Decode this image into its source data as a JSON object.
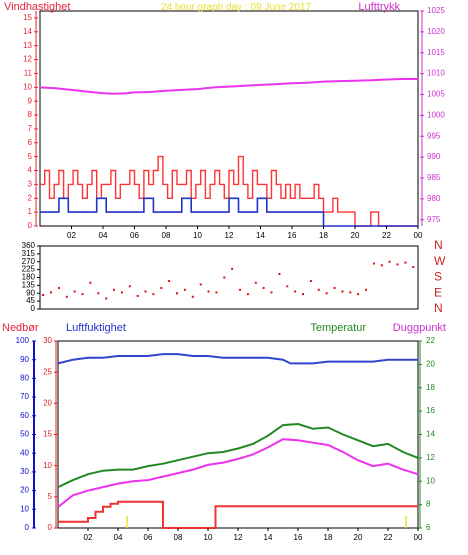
{
  "header": {
    "title": "24 hour graph day : 09 June 2017",
    "left_label": "Vindhastighet",
    "right_label": "Lufttrykk"
  },
  "colors": {
    "frame": "#000000",
    "left_axis": "#e8243a",
    "right_axis": "#cc33cc",
    "title": "#e8e030",
    "wind": "#ff3333",
    "gust_base": "#2233cc",
    "pressure": "#ee33ee",
    "direction": "#dd1111",
    "rain": "#1111cc",
    "humidity": "#3344cc",
    "temperature": "#228822",
    "dewpoint": "#ee33ee",
    "rain_line": "#ee3333",
    "rain_mark": "#e8e030",
    "hum_axis": "#dd2222"
  },
  "chart_data": [
    {
      "type": "line",
      "title": "24 hour graph day : 09 June 2017",
      "xlabel": "",
      "ylabel": "Vindhastighet",
      "x_ticks": [
        "02",
        "04",
        "06",
        "08",
        "10",
        "12",
        "14",
        "16",
        "18",
        "20",
        "22",
        "00"
      ],
      "left_ticks": [
        "0",
        "1",
        "2",
        "3",
        "4",
        "5",
        "6",
        "7",
        "8",
        "9",
        "10",
        "11",
        "12",
        "13",
        "14",
        "15"
      ],
      "right_ticks": [
        "975",
        "980",
        "985",
        "990",
        "995",
        "1000",
        "1005",
        "1010",
        "1015",
        "1020",
        "1025"
      ],
      "ylim": [
        0,
        15.5
      ],
      "y2lim": [
        973.5,
        1025
      ],
      "series": [
        {
          "name": "Lufttrykk",
          "axis": "right",
          "x": [
            0,
            1,
            2,
            3,
            4,
            4.7,
            5.5,
            6,
            7,
            8,
            9,
            10,
            11,
            12,
            13,
            14,
            15,
            16,
            17,
            18,
            19,
            20,
            21,
            22,
            23,
            24
          ],
          "values": [
            1006.7,
            1006.5,
            1006.1,
            1005.7,
            1005.3,
            1005.2,
            1005.3,
            1005.5,
            1005.6,
            1005.9,
            1006.1,
            1006.3,
            1006.7,
            1006.9,
            1007.1,
            1007.3,
            1007.5,
            1007.7,
            1007.8,
            1008.1,
            1008.2,
            1008.3,
            1008.4,
            1008.6,
            1008.7,
            1008.7
          ]
        },
        {
          "name": "",
          "axis": "left",
          "x": [
            0,
            0.3,
            0.6,
            0.9,
            1.2,
            1.5,
            1.8,
            2.1,
            2.4,
            2.7,
            3.0,
            3.3,
            3.6,
            3.9,
            4.2,
            4.5,
            4.8,
            5.1,
            5.4,
            5.7,
            6.0,
            6.3,
            6.6,
            6.9,
            7.2,
            7.5,
            7.8,
            8.1,
            8.4,
            8.7,
            9.0,
            9.3,
            9.6,
            9.9,
            10.2,
            10.5,
            10.8,
            11.1,
            11.4,
            11.7,
            12.0,
            12.3,
            12.6,
            12.9,
            13.2,
            13.5,
            13.8,
            14.1,
            14.4,
            14.7,
            15.0,
            15.3,
            15.6,
            15.9,
            16.2,
            16.5,
            16.8,
            17.1,
            17.4,
            17.7,
            18.0,
            18.3,
            18.6,
            18.9,
            19.2,
            19.5,
            20,
            20.5,
            21,
            21.5,
            22,
            22.5,
            23,
            24
          ],
          "values": [
            3,
            4,
            2,
            3,
            4,
            2,
            3,
            4,
            3,
            2,
            3,
            4,
            2,
            3,
            3,
            4,
            2,
            3,
            3,
            4,
            3,
            2,
            4,
            3,
            4,
            5,
            3,
            2,
            4,
            3,
            3,
            4,
            2,
            3,
            4,
            2,
            3,
            4,
            3,
            2,
            4,
            3,
            5,
            3,
            2,
            4,
            3,
            3,
            2,
            4,
            3,
            2,
            3,
            2,
            3,
            2,
            2,
            2,
            3,
            2,
            1,
            1,
            2,
            1,
            1,
            1,
            0,
            0,
            1,
            0,
            0,
            0,
            0,
            0
          ]
        },
        {
          "name": "",
          "axis": "left",
          "x": [
            0,
            0.6,
            1.2,
            1.8,
            2.4,
            3.0,
            3.6,
            4.2,
            4.8,
            5.4,
            6.0,
            6.6,
            7.2,
            7.8,
            8.4,
            9.0,
            9.6,
            10.2,
            10.8,
            11.4,
            12.0,
            12.6,
            13.2,
            13.8,
            14.4,
            15.0,
            15.6,
            16.2,
            16.8,
            17.4,
            18.0,
            18.6,
            19.2,
            20,
            21,
            22,
            23,
            24
          ],
          "values": [
            1,
            1,
            2,
            1,
            1,
            1,
            2,
            1,
            1,
            1,
            1,
            2,
            1,
            1,
            1,
            2,
            1,
            1,
            1,
            1,
            2,
            1,
            1,
            2,
            1,
            1,
            1,
            1,
            1,
            1,
            0,
            0,
            0,
            0,
            0,
            0,
            0,
            0
          ]
        }
      ]
    },
    {
      "type": "scatter",
      "title": "",
      "xlabel": "",
      "ylabel": "",
      "y_ticks": [
        "0",
        "45",
        "90",
        "135",
        "180",
        "225",
        "270",
        "315",
        "360"
      ],
      "compass": [
        "N",
        "W",
        "S",
        "E",
        "N"
      ],
      "ylim": [
        0,
        360
      ],
      "series": [
        {
          "name": "",
          "x": [
            0.2,
            0.7,
            1.2,
            1.7,
            2.2,
            2.7,
            3.2,
            3.7,
            4.2,
            4.7,
            5.2,
            5.7,
            6.2,
            6.7,
            7.2,
            7.7,
            8.2,
            8.7,
            9.2,
            9.7,
            10.2,
            10.7,
            11.2,
            11.7,
            12.2,
            12.7,
            13.2,
            13.7,
            14.2,
            14.7,
            15.2,
            15.7,
            16.2,
            16.7,
            17.2,
            17.7,
            18.2,
            18.7,
            19.2,
            19.7,
            20.2,
            20.7,
            21.2,
            21.7,
            22.2,
            22.7,
            23.2,
            23.7
          ],
          "values": [
            80,
            95,
            120,
            70,
            100,
            85,
            150,
            90,
            60,
            110,
            95,
            130,
            75,
            100,
            85,
            120,
            160,
            90,
            110,
            70,
            140,
            100,
            95,
            180,
            230,
            110,
            85,
            150,
            120,
            95,
            200,
            130,
            100,
            85,
            160,
            110,
            90,
            120,
            100,
            95,
            85,
            110,
            260,
            250,
            270,
            255,
            265,
            240
          ]
        }
      ]
    },
    {
      "type": "line",
      "title": "",
      "xlabel": "",
      "ylabel": "",
      "x_ticks": [
        "02",
        "04",
        "06",
        "08",
        "10",
        "12",
        "14",
        "16",
        "18",
        "20",
        "22",
        "00"
      ],
      "ticks_pct": [
        "0",
        "10",
        "20",
        "30",
        "40",
        "50",
        "60",
        "70",
        "80",
        "90",
        "100"
      ],
      "ticks_rain": [
        "0",
        "5",
        "10",
        "15",
        "20",
        "25",
        "30"
      ],
      "ticks_temp": [
        "6",
        "8",
        "10",
        "12",
        "14",
        "16",
        "18",
        "20",
        "22"
      ],
      "series": [
        {
          "name": "Luftfuktighet",
          "axis": "pct",
          "x": [
            0,
            1,
            2,
            3,
            4,
            5,
            6,
            7,
            8,
            9,
            10,
            11,
            12,
            13,
            14,
            15,
            15.5,
            16,
            17,
            18,
            19,
            20,
            21,
            22,
            23,
            24
          ],
          "values": [
            88,
            90,
            91,
            91,
            92,
            92,
            92,
            93,
            93,
            92,
            92,
            91,
            91,
            91,
            91,
            90,
            88,
            88,
            88,
            89,
            89,
            89,
            89,
            90,
            90,
            90
          ]
        },
        {
          "name": "Temperatur",
          "axis": "temp",
          "x": [
            0,
            1,
            2,
            3,
            4,
            5,
            6,
            7,
            8,
            9,
            10,
            11,
            12,
            13,
            14,
            15,
            16,
            17,
            18,
            19,
            20,
            21,
            22,
            23,
            24
          ],
          "values": [
            9.5,
            10.1,
            10.6,
            10.9,
            11.0,
            11.0,
            11.3,
            11.5,
            11.8,
            12.1,
            12.4,
            12.5,
            12.8,
            13.2,
            13.9,
            14.8,
            14.9,
            14.5,
            14.6,
            14.0,
            13.5,
            13.0,
            13.2,
            12.5,
            12.0
          ]
        },
        {
          "name": "Duggpunkt",
          "axis": "temp",
          "x": [
            0,
            1,
            2,
            3,
            4,
            5,
            6,
            7,
            8,
            9,
            10,
            11,
            12,
            13,
            14,
            15,
            16,
            17,
            18,
            19,
            20,
            21,
            22,
            23,
            24
          ],
          "values": [
            7.8,
            8.8,
            9.2,
            9.5,
            9.8,
            10.0,
            10.1,
            10.4,
            10.7,
            11.0,
            11.4,
            11.6,
            11.9,
            12.3,
            12.9,
            13.6,
            13.5,
            13.3,
            13.1,
            12.5,
            11.8,
            11.3,
            11.5,
            11.0,
            10.6
          ]
        },
        {
          "name": "Nedbør",
          "axis": "rain",
          "step": true,
          "x": [
            0,
            1.5,
            2,
            2.5,
            3,
            3.5,
            4,
            6.9,
            7,
            9.9,
            10.5,
            13,
            24
          ],
          "values": [
            1,
            1,
            1.6,
            2.6,
            3.4,
            3.9,
            4.2,
            4.2,
            0,
            0,
            3.5,
            3.5,
            3.5
          ]
        }
      ]
    }
  ],
  "bottom_labels": {
    "rain": "Nedbør",
    "humidity": "Luftfuktighet",
    "temperature": "Temperatur",
    "dewpoint": "Duggpunkt"
  }
}
